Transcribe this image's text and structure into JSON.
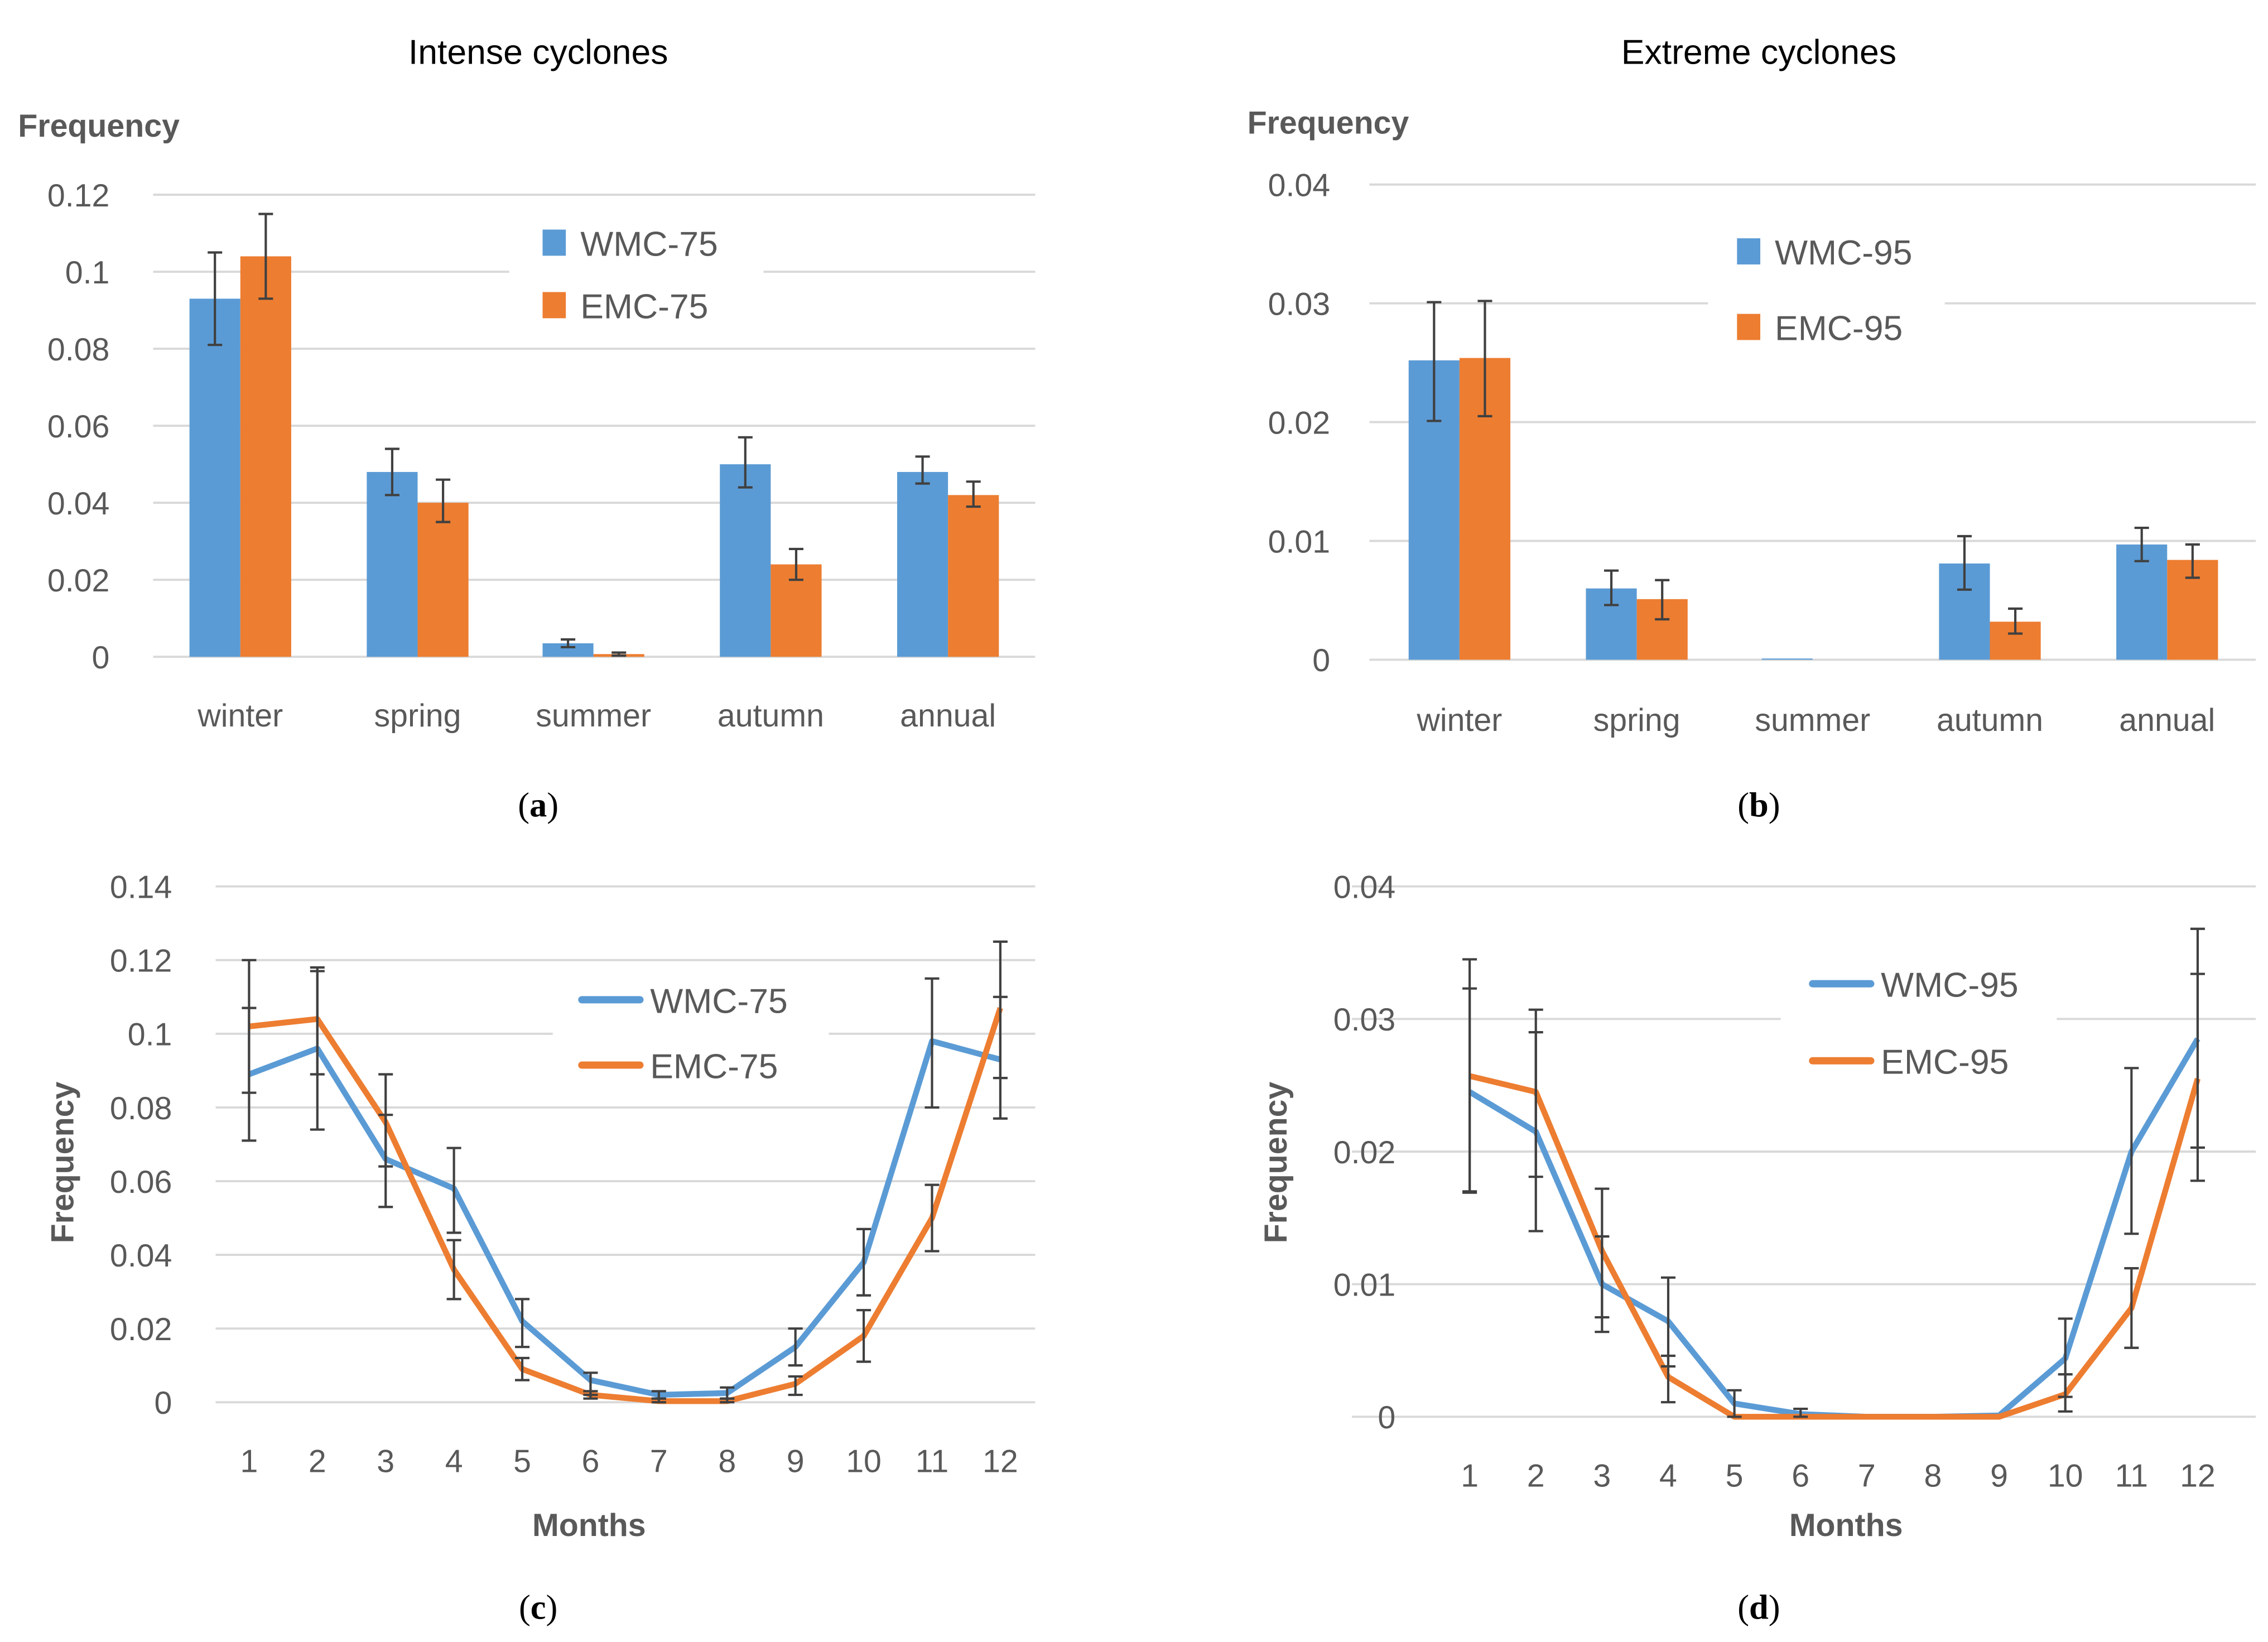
{
  "colors": {
    "wmc": "#5b9bd5",
    "emc": "#ed7d31",
    "grid": "#d9d9d9",
    "err": "#404040"
  },
  "chart_data": [
    {
      "id": "a",
      "type": "bar",
      "title": "Intense cyclones",
      "caption_letter": "a",
      "ylabel": "Frequency",
      "xlabel": "",
      "ylim": [
        0,
        0.12
      ],
      "yticks": [
        "0",
        "0.02",
        "0.04",
        "0.06",
        "0.08",
        "0.1",
        "0.12"
      ],
      "categories": [
        "winter",
        "spring",
        "summer",
        "autumn",
        "annual"
      ],
      "legend_position": "top-center",
      "series": [
        {
          "name": "WMC-75",
          "color": "#5b9bd5",
          "values": [
            0.093,
            0.048,
            0.0035,
            0.05,
            0.048
          ],
          "errors": [
            [
              0.081,
              0.105
            ],
            [
              0.042,
              0.054
            ],
            [
              0.0025,
              0.0045
            ],
            [
              0.044,
              0.057
            ],
            [
              0.045,
              0.052
            ]
          ]
        },
        {
          "name": "EMC-75",
          "color": "#ed7d31",
          "values": [
            0.104,
            0.04,
            0.0007,
            0.024,
            0.042
          ],
          "errors": [
            [
              0.093,
              0.115
            ],
            [
              0.035,
              0.046
            ],
            [
              0.0003,
              0.0011
            ],
            [
              0.02,
              0.028
            ],
            [
              0.039,
              0.0455
            ]
          ]
        }
      ]
    },
    {
      "id": "b",
      "type": "bar",
      "title": "Extreme cyclones",
      "caption_letter": "b",
      "ylabel": "Frequency",
      "xlabel": "",
      "ylim": [
        0,
        0.04
      ],
      "yticks": [
        "0",
        "0.01",
        "0.02",
        "0.03",
        "0.04"
      ],
      "categories": [
        "winter",
        "spring",
        "summer",
        "autumn",
        "annual"
      ],
      "legend_position": "top-center",
      "series": [
        {
          "name": "WMC-95",
          "color": "#5b9bd5",
          "values": [
            0.0252,
            0.006,
            0.0001,
            0.0081,
            0.0097
          ],
          "errors": [
            [
              0.0201,
              0.0301
            ],
            [
              0.0046,
              0.0075
            ],
            null,
            [
              0.0059,
              0.0104
            ],
            [
              0.0083,
              0.0111
            ]
          ]
        },
        {
          "name": "EMC-95",
          "color": "#ed7d31",
          "values": [
            0.0254,
            0.0051,
            0,
            0.0032,
            0.0084
          ],
          "errors": [
            [
              0.0205,
              0.0302
            ],
            [
              0.0034,
              0.0067
            ],
            null,
            [
              0.0022,
              0.0043
            ],
            [
              0.0069,
              0.0097
            ]
          ]
        }
      ]
    },
    {
      "id": "c",
      "type": "line",
      "title": "",
      "caption_letter": "c",
      "ylabel": "Frequency",
      "xlabel": "Months",
      "ylim": [
        0,
        0.14
      ],
      "yticks": [
        "0",
        "0.02",
        "0.04",
        "0.06",
        "0.08",
        "0.1",
        "0.12",
        "0.14"
      ],
      "x": [
        "1",
        "2",
        "3",
        "4",
        "5",
        "6",
        "7",
        "8",
        "9",
        "10",
        "11",
        "12"
      ],
      "legend_position": "top-center",
      "series": [
        {
          "name": "WMC-75",
          "color": "#5b9bd5",
          "values": [
            0.089,
            0.096,
            0.066,
            0.058,
            0.022,
            0.006,
            0.002,
            0.0025,
            0.015,
            0.038,
            0.098,
            0.093
          ],
          "errors": [
            [
              0.071,
              0.107
            ],
            [
              0.074,
              0.118
            ],
            [
              0.053,
              0.078
            ],
            [
              0.046,
              0.069
            ],
            [
              0.015,
              0.028
            ],
            [
              0.002,
              0.008
            ],
            [
              0.001,
              0.003
            ],
            [
              0.001,
              0.004
            ],
            [
              0.01,
              0.02
            ],
            [
              0.029,
              0.047
            ],
            [
              0.08,
              0.115
            ],
            [
              0.077,
              0.11
            ]
          ]
        },
        {
          "name": "EMC-75",
          "color": "#ed7d31",
          "values": [
            0.102,
            0.104,
            0.076,
            0.036,
            0.009,
            0.002,
            0.0003,
            0.0003,
            0.005,
            0.018,
            0.05,
            0.107
          ],
          "errors": [
            [
              0.084,
              0.12
            ],
            [
              0.089,
              0.117
            ],
            [
              0.064,
              0.089
            ],
            [
              0.028,
              0.044
            ],
            [
              0.006,
              0.012
            ],
            [
              0.001,
              0.003
            ],
            [
              0,
              0.001
            ],
            [
              0,
              0.001
            ],
            [
              0.002,
              0.007
            ],
            [
              0.011,
              0.025
            ],
            [
              0.041,
              0.059
            ],
            [
              0.088,
              0.125
            ]
          ]
        }
      ]
    },
    {
      "id": "d",
      "type": "line",
      "title": "",
      "caption_letter": "d",
      "ylabel": "Frequency",
      "xlabel": "Months",
      "ylim": [
        0,
        0.04
      ],
      "yticks": [
        "0",
        "0.01",
        "0.02",
        "0.03",
        "0.04"
      ],
      "x": [
        "1",
        "2",
        "3",
        "4",
        "5",
        "6",
        "7",
        "8",
        "9",
        "10",
        "11",
        "12"
      ],
      "legend_position": "top-center",
      "series": [
        {
          "name": "WMC-95",
          "color": "#5b9bd5",
          "values": [
            0.0245,
            0.0215,
            0.01,
            0.0072,
            0.001,
            0.0002,
            0,
            0,
            0.0001,
            0.0044,
            0.02,
            0.0285
          ],
          "errors": [
            [
              0.017,
              0.0323
            ],
            [
              0.014,
              0.029
            ],
            [
              0.0075,
              0.0136
            ],
            [
              0.0038,
              0.0105
            ],
            [
              0,
              0.002
            ],
            [
              0,
              0.0006
            ],
            null,
            null,
            null,
            [
              0.0015,
              0.0074
            ],
            [
              0.0138,
              0.0263
            ],
            [
              0.0203,
              0.0368
            ]
          ]
        },
        {
          "name": "EMC-95",
          "color": "#ed7d31",
          "values": [
            0.0257,
            0.0245,
            0.0125,
            0.003,
            0,
            0,
            0,
            0,
            0,
            0.0017,
            0.0082,
            0.0255
          ],
          "errors": [
            [
              0.0169,
              0.0345
            ],
            [
              0.0181,
              0.0307
            ],
            [
              0.0064,
              0.0172
            ],
            [
              0.0011,
              0.0046
            ],
            null,
            null,
            null,
            null,
            null,
            [
              0.0004,
              0.0032
            ],
            [
              0.0052,
              0.0112
            ],
            [
              0.0178,
              0.0334
            ]
          ]
        }
      ]
    }
  ]
}
